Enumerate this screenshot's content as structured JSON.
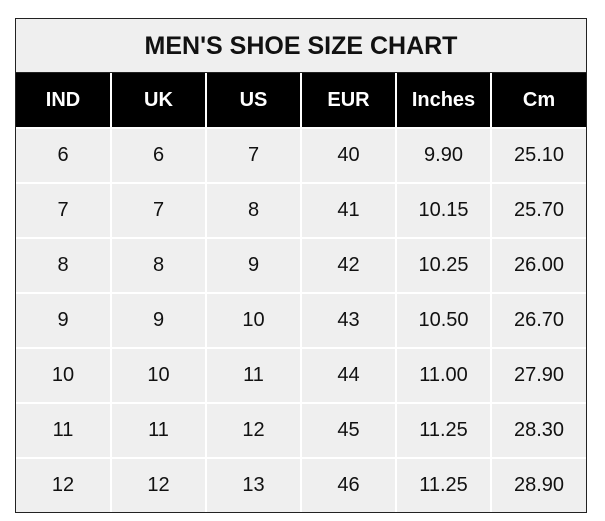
{
  "chart_data": {
    "type": "table",
    "title": "MEN'S SHOE SIZE CHART",
    "columns": [
      "IND",
      "UK",
      "US",
      "EUR",
      "Inches",
      "Cm"
    ],
    "rows": [
      [
        "6",
        "6",
        "7",
        "40",
        "9.90",
        "25.10"
      ],
      [
        "7",
        "7",
        "8",
        "41",
        "10.15",
        "25.70"
      ],
      [
        "8",
        "8",
        "9",
        "42",
        "10.25",
        "26.00"
      ],
      [
        "9",
        "9",
        "10",
        "43",
        "10.50",
        "26.70"
      ],
      [
        "10",
        "10",
        "11",
        "44",
        "11.00",
        "27.90"
      ],
      [
        "11",
        "11",
        "12",
        "45",
        "11.25",
        "28.30"
      ],
      [
        "12",
        "12",
        "13",
        "46",
        "11.25",
        "28.90"
      ]
    ]
  }
}
